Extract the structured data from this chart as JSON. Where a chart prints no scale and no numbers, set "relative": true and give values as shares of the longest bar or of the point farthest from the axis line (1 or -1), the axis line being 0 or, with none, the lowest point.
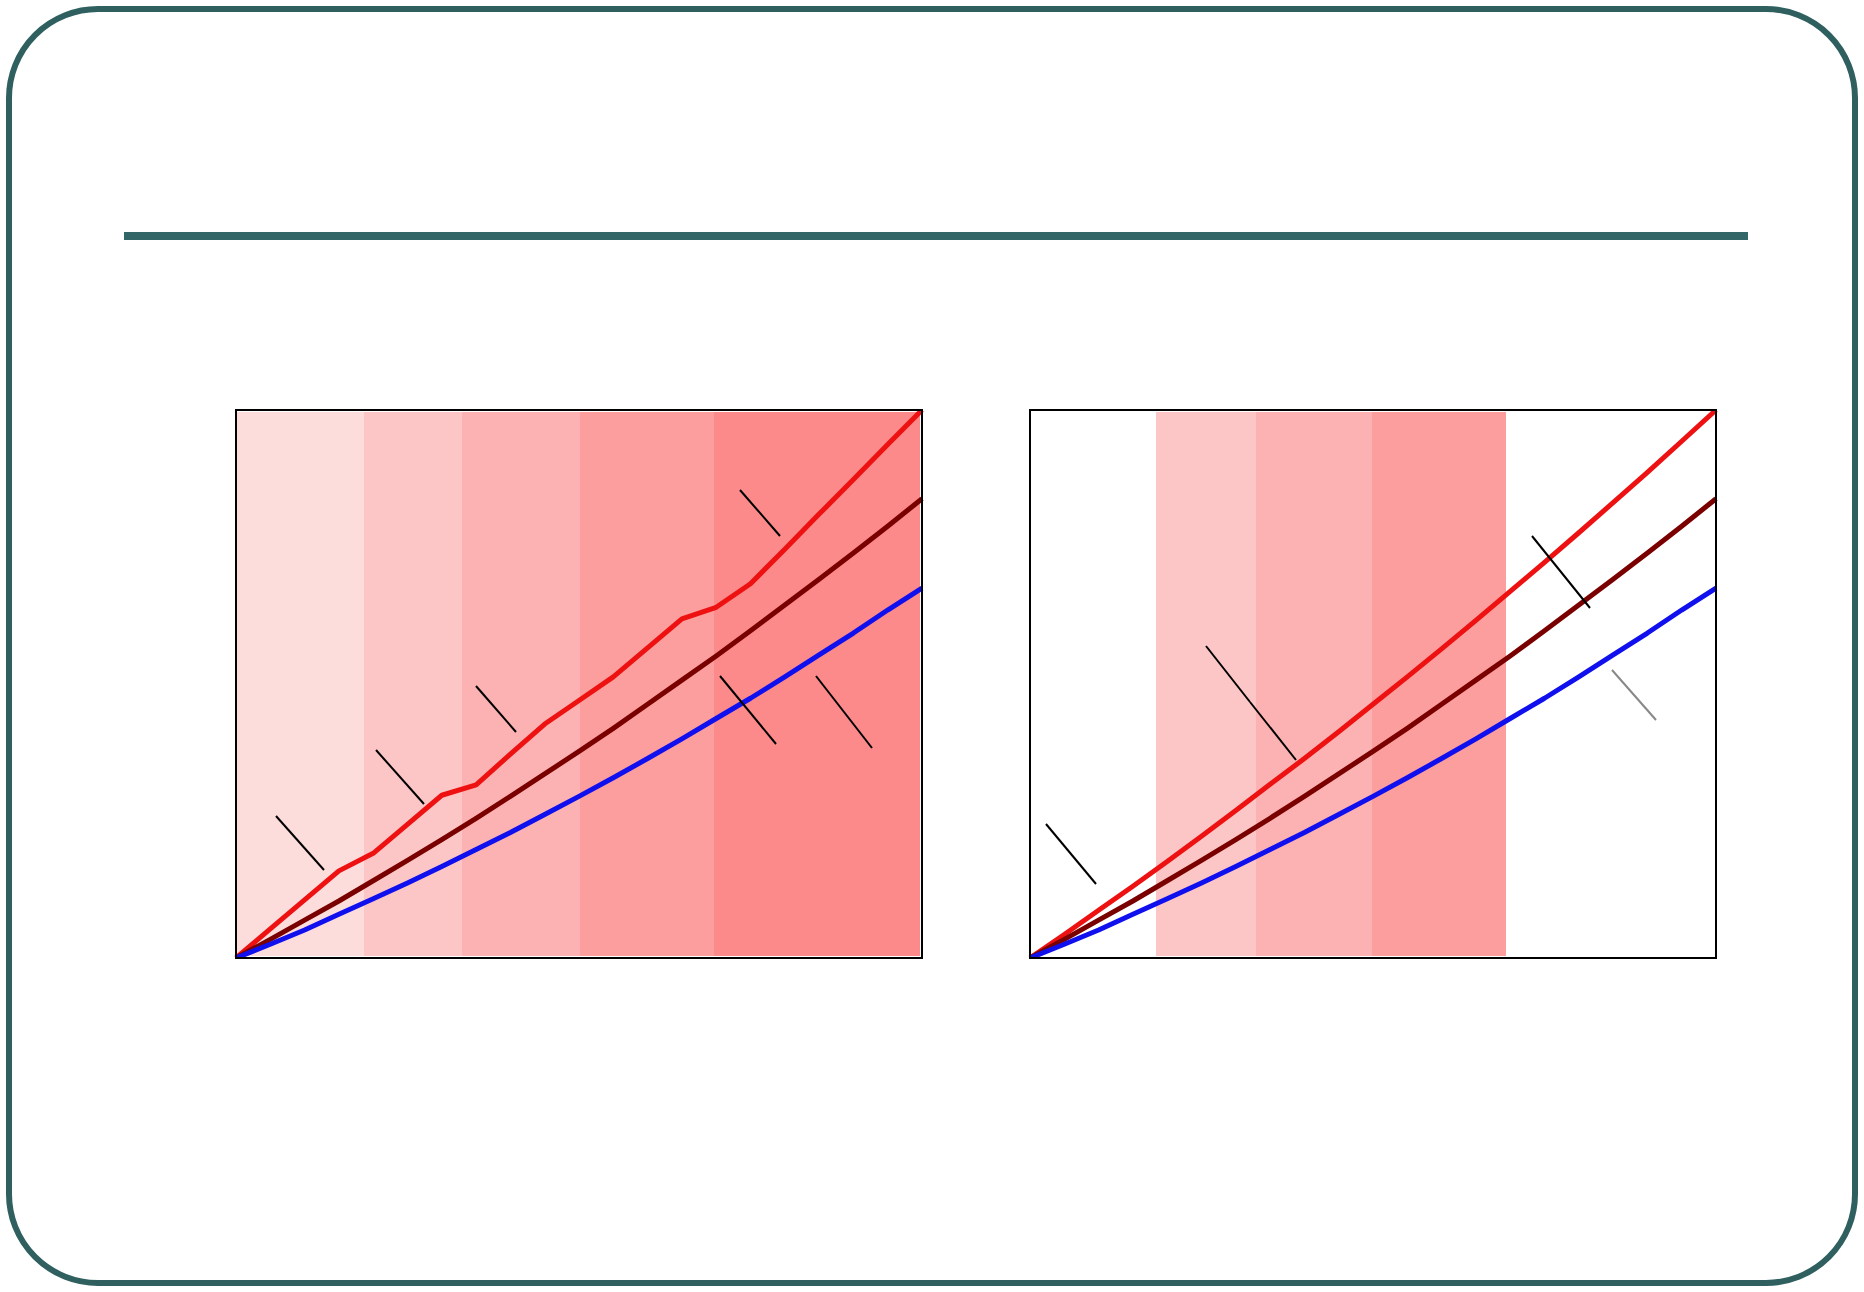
{
  "chart_data": [
    {
      "type": "line",
      "relative": true,
      "legend": false,
      "marker": "none",
      "line_style": "solid",
      "categories": [
        null,
        null,
        null,
        null,
        null,
        null,
        null,
        null,
        null,
        null,
        null,
        null,
        null,
        null,
        null,
        null,
        null,
        null,
        null,
        null,
        null
      ],
      "series": [
        {
          "color": "#1010ee",
          "values": [
            0,
            0.025,
            0.051,
            0.08,
            0.108,
            0.137,
            0.167,
            0.198,
            0.229,
            0.262,
            0.295,
            0.329,
            0.364,
            0.4,
            0.437,
            0.474,
            0.513,
            0.553,
            0.593,
            0.635,
            0.675
          ]
        },
        {
          "color": "#7a0000",
          "values": [
            0,
            0.034,
            0.069,
            0.104,
            0.141,
            0.178,
            0.216,
            0.255,
            0.295,
            0.336,
            0.377,
            0.419,
            0.463,
            0.507,
            0.551,
            0.597,
            0.644,
            0.691,
            0.739,
            0.788,
            0.838
          ]
        },
        {
          "color": "#ee1111",
          "values": [
            0,
            0.053,
            0.106,
            0.159,
            0.191,
            0.244,
            0.297,
            0.316,
            0.372,
            0.427,
            0.47,
            0.513,
            0.566,
            0.619,
            0.64,
            0.683,
            0.746,
            0.81,
            0.873,
            0.937,
            1
          ]
        }
      ]
    },
    {
      "type": "line",
      "relative": true,
      "legend": false,
      "marker": "none",
      "line_style": "solid",
      "categories": [
        null,
        null,
        null,
        null,
        null,
        null,
        null,
        null,
        null,
        null,
        null,
        null,
        null,
        null,
        null,
        null,
        null,
        null,
        null,
        null,
        null
      ],
      "series": [
        {
          "color": "#1010ee",
          "values": [
            0,
            0.025,
            0.051,
            0.08,
            0.108,
            0.137,
            0.167,
            0.198,
            0.229,
            0.262,
            0.295,
            0.329,
            0.364,
            0.4,
            0.437,
            0.474,
            0.513,
            0.553,
            0.593,
            0.635,
            0.675
          ]
        },
        {
          "color": "#7a0000",
          "values": [
            0,
            0.034,
            0.069,
            0.104,
            0.141,
            0.178,
            0.216,
            0.255,
            0.295,
            0.336,
            0.377,
            0.419,
            0.463,
            0.507,
            0.551,
            0.597,
            0.644,
            0.691,
            0.739,
            0.788,
            0.838
          ]
        },
        {
          "color": "#ee1111",
          "values": [
            0,
            0.043,
            0.087,
            0.131,
            0.176,
            0.222,
            0.269,
            0.317,
            0.364,
            0.413,
            0.463,
            0.513,
            0.564,
            0.616,
            0.669,
            0.722,
            0.776,
            0.831,
            0.886,
            0.943,
            1
          ]
        }
      ]
    }
  ]
}
